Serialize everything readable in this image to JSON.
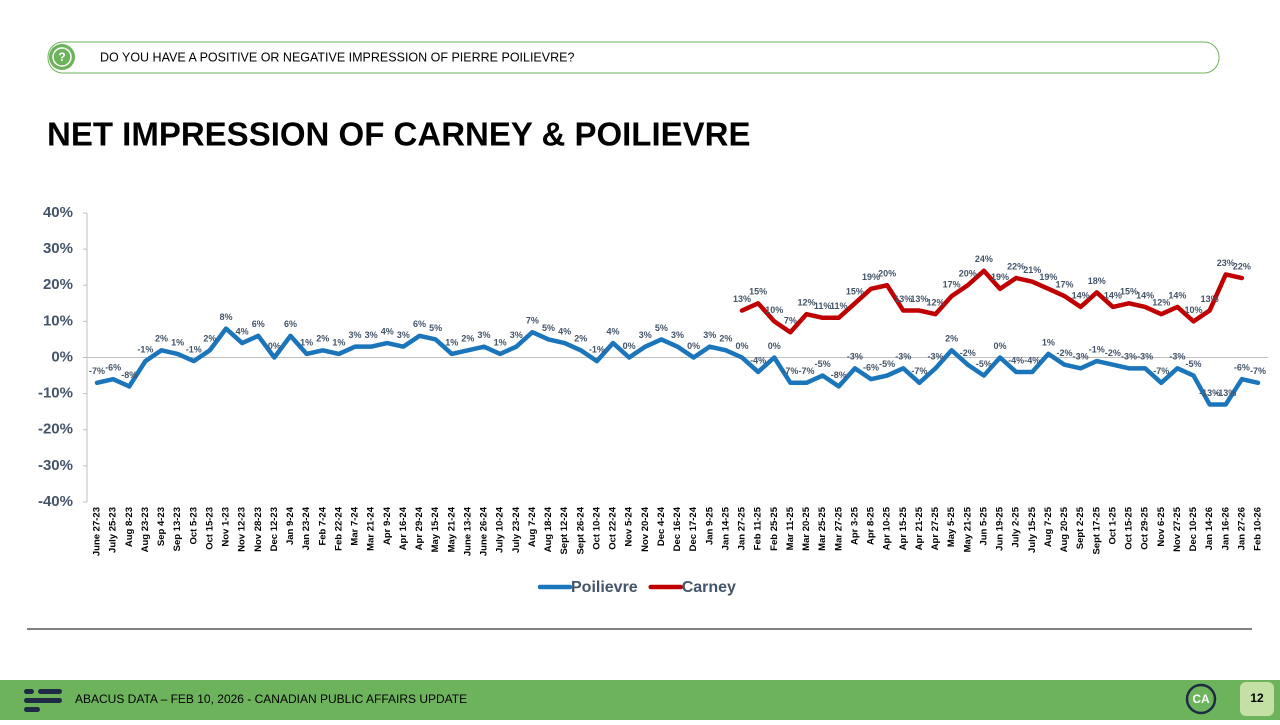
{
  "header": {
    "question": "DO YOU HAVE A POSITIVE OR NEGATIVE IMPRESSION OF PIERRE POILIEVRE?"
  },
  "chart_data": {
    "type": "line",
    "title": "NET IMPRESSION OF CARNEY & POILIEVRE",
    "categories": [
      "June 27-23",
      "July 25-23",
      "Aug 8-23",
      "Aug 23-23",
      "Sep 4-23",
      "Sep 13-23",
      "Oct 5-23",
      "Oct 15-23",
      "Nov 1-23",
      "Nov 12-23",
      "Nov 28-23",
      "Dec 12-23",
      "Jan 9-24",
      "Jan 23-24",
      "Feb 7-24",
      "Feb 22-24",
      "Mar 7-24",
      "Mar 21-24",
      "Apr 9-24",
      "Apr 16-24",
      "Apr 29-24",
      "May 15-24",
      "May 21-24",
      "June 13-24",
      "June 26-24",
      "July 10-24",
      "July 23-24",
      "Aug 7-24",
      "Aug 18-24",
      "Sept 12-24",
      "Sept 26-24",
      "Oct 10-24",
      "Oct 22-24",
      "Nov 5-24",
      "Nov 20-24",
      "Dec 4-24",
      "Dec 16-24",
      "Dec 17-24",
      "Jan 9-25",
      "Jan 14-25",
      "Jan 27-25",
      "Feb 11-25",
      "Feb 25-25",
      "Mar 11-25",
      "Mar 20-25",
      "Mar 25-25",
      "Mar 27-25",
      "Apr 3-25",
      "Apr 8-25",
      "Apr 10-25",
      "Apr 15-25",
      "Apr 21-25",
      "Apr 27-25",
      "May 5-25",
      "May 21-25",
      "Jun 5-25",
      "Jun 19-25",
      "July 2-25",
      "July 15-25",
      "Aug 7-25",
      "Aug 20-25",
      "Sept 2-25",
      "Sept 17-25",
      "Oct 1-25",
      "Oct 15-25",
      "Oct 29-25",
      "Nov 6-25",
      "Nov 27-25",
      "Dec 10-25",
      "Jan 14-26",
      "Jan 16-26",
      "Jan 27-26",
      "Feb 10-26"
    ],
    "series": [
      {
        "name": "Poilievre",
        "color": "#1a75bb",
        "values": [
          -7,
          -6,
          -8,
          -1,
          2,
          1,
          -1,
          2,
          8,
          4,
          6,
          0,
          6,
          1,
          2,
          1,
          3,
          3,
          4,
          3,
          6,
          5,
          1,
          2,
          3,
          1,
          3,
          7,
          5,
          4,
          2,
          -1,
          4,
          0,
          3,
          5,
          3,
          0,
          3,
          2,
          0,
          -4,
          0,
          -7,
          -7,
          -5,
          -8,
          -3,
          -6,
          -5,
          -3,
          -7,
          -3,
          2,
          -2,
          -5,
          0,
          -4,
          -4,
          1,
          -2,
          -3,
          -1,
          -2,
          -3,
          -3,
          -7,
          -3,
          -5,
          -13,
          -13,
          -6,
          -7
        ],
        "value_labels": [
          "-7%",
          "-6%",
          "-8%",
          "-1%",
          "2%",
          "1%",
          "-1%",
          "2%",
          "8%",
          "4%",
          "6%",
          "0%",
          "6%",
          "1%",
          "2%",
          "1%",
          "3%",
          "3%",
          "4%",
          "3%",
          "6%",
          "5%",
          "1%",
          "2%",
          "3%",
          "1%",
          "3%",
          "7%",
          "5%",
          "4%",
          "2%",
          "-1%",
          "4%",
          "0%",
          "3%",
          "5%",
          "3%",
          "0%",
          "3%",
          "2%",
          "0%",
          "-4%",
          "0%",
          "-7%",
          "-7%",
          "-5%",
          "-8%",
          "-3%",
          "-6%",
          "-5%",
          "-3%",
          "-7%",
          "-3%",
          "2%",
          "-2%",
          "-5%",
          "0%",
          "-4%",
          "-4%",
          "1%",
          "-2%",
          "-3%",
          "-1%",
          "-2%",
          "-3%",
          "-3%",
          "-7%",
          "-3%",
          "-5%",
          "-13%",
          "-13%",
          "-6%",
          "-7%"
        ]
      },
      {
        "name": "Carney",
        "color": "#c00000",
        "values": [
          null,
          null,
          null,
          null,
          null,
          null,
          null,
          null,
          null,
          null,
          null,
          null,
          null,
          null,
          null,
          null,
          null,
          null,
          null,
          null,
          null,
          null,
          null,
          null,
          null,
          null,
          null,
          null,
          null,
          null,
          null,
          null,
          null,
          null,
          null,
          null,
          null,
          null,
          null,
          null,
          13,
          15,
          10,
          7,
          12,
          11,
          11,
          15,
          19,
          20,
          13,
          13,
          12,
          17,
          20,
          24,
          19,
          22,
          21,
          19,
          17,
          14,
          18,
          14,
          15,
          14,
          12,
          14,
          10,
          13,
          23,
          22,
          null
        ],
        "value_labels": [
          null,
          null,
          null,
          null,
          null,
          null,
          null,
          null,
          null,
          null,
          null,
          null,
          null,
          null,
          null,
          null,
          null,
          null,
          null,
          null,
          null,
          null,
          null,
          null,
          null,
          null,
          null,
          null,
          null,
          null,
          null,
          null,
          null,
          null,
          null,
          null,
          null,
          null,
          null,
          null,
          "13%",
          "15%",
          "10%",
          "7%",
          "12%",
          "11%",
          "11%",
          "15%",
          "19%",
          "20%",
          "13%",
          "13%",
          "12%",
          "17%",
          "20%",
          "24%",
          "19%",
          "22%",
          "21%",
          "19%",
          "17%",
          "14%",
          "18%",
          "14%",
          "15%",
          "14%",
          "12%",
          "14%",
          "10%",
          "13%",
          "23%",
          "22%",
          null
        ]
      }
    ],
    "ylim": [
      -40,
      40
    ],
    "yticks": [
      {
        "value": -40,
        "label": "-40%"
      },
      {
        "value": -30,
        "label": "-30%"
      },
      {
        "value": -20,
        "label": "-20%"
      },
      {
        "value": -10,
        "label": "-10%"
      },
      {
        "value": 0,
        "label": "0%"
      },
      {
        "value": 10,
        "label": "10%"
      },
      {
        "value": 20,
        "label": "20%"
      },
      {
        "value": 30,
        "label": "30%"
      },
      {
        "value": 40,
        "label": "40%"
      }
    ],
    "legend": "bottom"
  },
  "footer": {
    "text": "ABACUS DATA – FEB 10, 2026 - CANADIAN PUBLIC AFFAIRS UPDATE",
    "logo": "CA",
    "page": "12"
  }
}
